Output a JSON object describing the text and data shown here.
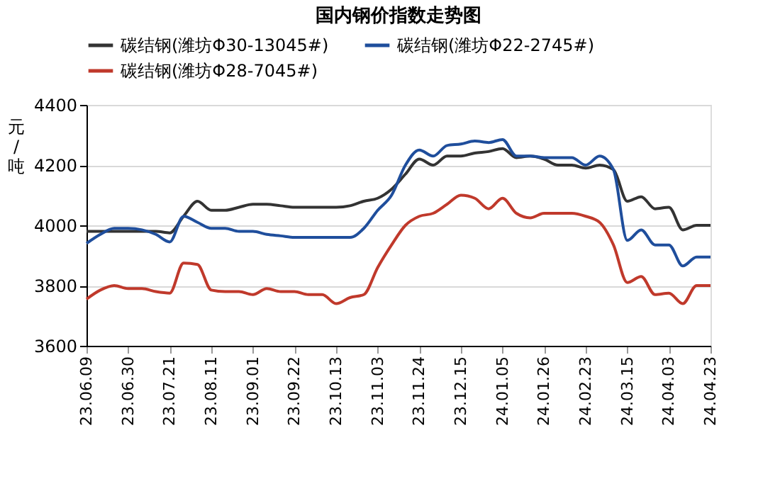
{
  "chart_data": {
    "type": "line",
    "title": "国内钢价指数走势图",
    "ylabel": "元/吨",
    "categories": [
      "23.06.09",
      null,
      null,
      "23.06.30",
      null,
      null,
      "23.07.21",
      null,
      null,
      "23.08.11",
      null,
      null,
      "23.09.01",
      null,
      null,
      "23.09.22",
      null,
      null,
      "23.10.13",
      null,
      null,
      "23.11.03",
      null,
      null,
      "23.11.24",
      null,
      null,
      "23.12.15",
      null,
      null,
      "24.01.05",
      null,
      null,
      "24.01.26",
      null,
      null,
      "24.02.23",
      null,
      null,
      "24.03.15",
      null,
      null,
      "24.04.03",
      null,
      null,
      "24.04.23"
    ],
    "series": [
      {
        "name": "碳结钢(潍坊Φ30-13045#)",
        "color": "#333333",
        "values": [
          3980,
          3980,
          3980,
          3980,
          3980,
          3980,
          3975,
          4030,
          4080,
          4050,
          4050,
          4060,
          4070,
          4070,
          4065,
          4060,
          4060,
          4060,
          4060,
          4065,
          4080,
          4090,
          4120,
          4170,
          4220,
          4200,
          4230,
          4230,
          4240,
          4245,
          4255,
          4225,
          4230,
          4220,
          4200,
          4200,
          4190,
          4200,
          4185,
          4080,
          4095,
          4055,
          4060,
          3985,
          4000,
          4000
        ]
      },
      {
        "name": "碳结钢(潍坊Φ22-2745#)",
        "color": "#1f4e9c",
        "values": [
          3940,
          3970,
          3990,
          3990,
          3985,
          3970,
          3945,
          4030,
          4010,
          3990,
          3990,
          3980,
          3980,
          3970,
          3965,
          3960,
          3960,
          3960,
          3960,
          3960,
          3990,
          4050,
          4100,
          4200,
          4250,
          4230,
          4265,
          4270,
          4280,
          4275,
          4285,
          4230,
          4230,
          4225,
          4225,
          4225,
          4200,
          4230,
          4185,
          3950,
          3985,
          3935,
          3935,
          3865,
          3895,
          3895
        ]
      },
      {
        "name": "碳结钢(潍坊Φ28-7045#)",
        "color": "#c0392b",
        "values": [
          3755,
          3785,
          3800,
          3790,
          3790,
          3780,
          3775,
          3875,
          3870,
          3785,
          3780,
          3780,
          3770,
          3790,
          3780,
          3780,
          3770,
          3770,
          3740,
          3760,
          3770,
          3860,
          3935,
          4000,
          4030,
          4040,
          4070,
          4100,
          4090,
          4055,
          4090,
          4040,
          4025,
          4040,
          4040,
          4040,
          4030,
          4010,
          3935,
          3810,
          3830,
          3770,
          3775,
          3740,
          3800,
          3800
        ]
      }
    ],
    "ylim": [
      3600,
      4400
    ],
    "yticks": [
      3600,
      3800,
      4000,
      4200,
      4400
    ],
    "grid": "y",
    "legend": "top",
    "marker": "none",
    "line_style": "solid"
  }
}
